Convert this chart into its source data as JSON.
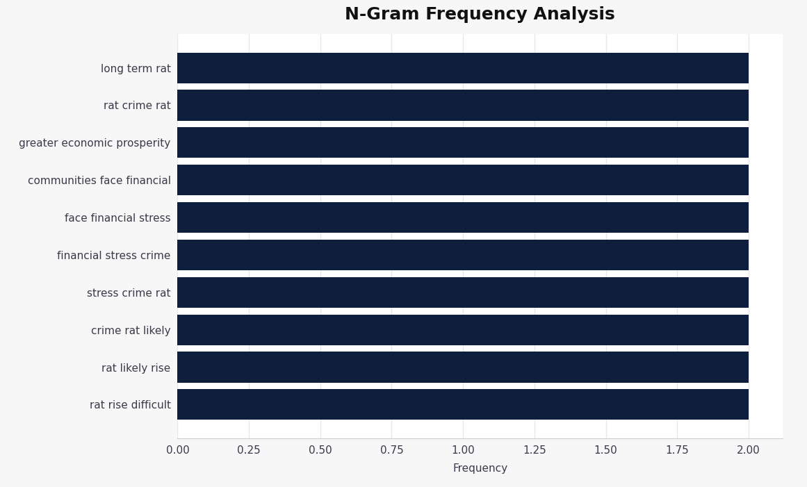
{
  "title": "N-Gram Frequency Analysis",
  "categories": [
    "rat rise difficult",
    "rat likely rise",
    "crime rat likely",
    "stress crime rat",
    "financial stress crime",
    "face financial stress",
    "communities face financial",
    "greater economic prosperity",
    "rat crime rat",
    "long term rat"
  ],
  "values": [
    2.0,
    2.0,
    2.0,
    2.0,
    2.0,
    2.0,
    2.0,
    2.0,
    2.0,
    2.0
  ],
  "bar_color": "#0d1f3c",
  "background_color": "#f7f7f7",
  "plot_bg_color": "#ffffff",
  "xlabel": "Frequency",
  "xlim": [
    0,
    2.0
  ],
  "xticks": [
    0.0,
    0.25,
    0.5,
    0.75,
    1.0,
    1.25,
    1.5,
    1.75,
    2.0
  ],
  "xtick_labels": [
    "0.00",
    "0.25",
    "0.50",
    "0.75",
    "1.00",
    "1.25",
    "1.50",
    "1.75",
    "2.00"
  ],
  "title_fontsize": 18,
  "label_fontsize": 11,
  "tick_fontsize": 11,
  "bar_height": 0.82,
  "grid_color": "#e8e8e8",
  "label_color": "#3a3a4a"
}
